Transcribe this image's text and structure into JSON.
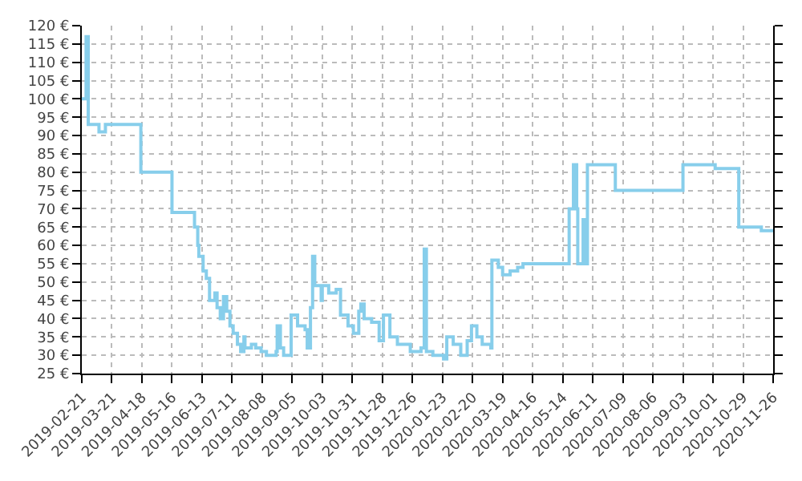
{
  "chart_data": {
    "type": "step",
    "color": "#87ceeb",
    "x": [
      "2019-02-21",
      "2019-02-25",
      "2019-02-27",
      "2019-03-09",
      "2019-03-15",
      "2019-04-17",
      "2019-05-16",
      "2019-06-06",
      "2019-06-09",
      "2019-06-10",
      "2019-06-14",
      "2019-06-17",
      "2019-06-20",
      "2019-06-25",
      "2019-06-27",
      "2019-06-30",
      "2019-07-03",
      "2019-07-06",
      "2019-07-09",
      "2019-07-12",
      "2019-07-16",
      "2019-07-19",
      "2019-07-22",
      "2019-07-23",
      "2019-07-29",
      "2019-08-02",
      "2019-08-07",
      "2019-08-12",
      "2019-08-21",
      "2019-08-22",
      "2019-08-25",
      "2019-08-28",
      "2019-09-04",
      "2019-09-10",
      "2019-09-17",
      "2019-09-19",
      "2019-09-22",
      "2019-09-24",
      "2019-09-26",
      "2019-10-02",
      "2019-10-03",
      "2019-10-09",
      "2019-10-16",
      "2019-10-20",
      "2019-10-27",
      "2019-11-01",
      "2019-11-06",
      "2019-11-08",
      "2019-11-11",
      "2019-11-18",
      "2019-11-25",
      "2019-11-29",
      "2019-12-05",
      "2019-12-12",
      "2019-12-24",
      "2020-01-03",
      "2020-01-06",
      "2020-01-08",
      "2020-01-14",
      "2020-01-24",
      "2020-01-27",
      "2020-02-02",
      "2020-02-09",
      "2020-02-15",
      "2020-02-19",
      "2020-02-24",
      "2020-02-29",
      "2020-03-08",
      "2020-03-09",
      "2020-03-15",
      "2020-03-19",
      "2020-03-26",
      "2020-04-02",
      "2020-04-07",
      "2020-05-20",
      "2020-05-24",
      "2020-05-27",
      "2020-05-28",
      "2020-06-02",
      "2020-06-03",
      "2020-06-06",
      "2020-07-02",
      "2020-09-03",
      "2020-10-03",
      "2020-10-25",
      "2020-11-15",
      "2020-11-26"
    ],
    "values": [
      100,
      117,
      93,
      91,
      93,
      80,
      69,
      65,
      60,
      57,
      53,
      51,
      45,
      47,
      43,
      40,
      46,
      42,
      38,
      36,
      33,
      31,
      35,
      32,
      33,
      32,
      31,
      30,
      31,
      38,
      32,
      30,
      41,
      38,
      37,
      32,
      43,
      57,
      49,
      45,
      49,
      47,
      48,
      41,
      38,
      36,
      42,
      44,
      40,
      39,
      34,
      41,
      35,
      33,
      31,
      32,
      59,
      31,
      30,
      29,
      35,
      33,
      30,
      34,
      38,
      35,
      33,
      32,
      56,
      54,
      52,
      53,
      54,
      55,
      70,
      82,
      70,
      55,
      67,
      55,
      82,
      75,
      82,
      81,
      65,
      64,
      64
    ],
    "xlim": [
      "2019-02-21",
      "2020-11-26"
    ],
    "xticks": [
      "2019-02-21",
      "2019-03-21",
      "2019-04-18",
      "2019-05-16",
      "2019-06-13",
      "2019-07-11",
      "2019-08-08",
      "2019-09-05",
      "2019-10-03",
      "2019-10-31",
      "2019-11-28",
      "2019-12-26",
      "2020-01-23",
      "2020-02-20",
      "2020-03-19",
      "2020-04-16",
      "2020-05-14",
      "2020-06-11",
      "2020-07-09",
      "2020-08-06",
      "2020-09-03",
      "2020-10-01",
      "2020-10-29",
      "2020-11-26"
    ],
    "ylim": [
      25,
      120
    ],
    "yticks": [
      {
        "value": 25,
        "label": "25 €"
      },
      {
        "value": 30,
        "label": "30 €"
      },
      {
        "value": 35,
        "label": "35 €"
      },
      {
        "value": 40,
        "label": "40 €"
      },
      {
        "value": 45,
        "label": "45 €"
      },
      {
        "value": 50,
        "label": "50 €"
      },
      {
        "value": 55,
        "label": "55 €"
      },
      {
        "value": 60,
        "label": "60 €"
      },
      {
        "value": 65,
        "label": "65 €"
      },
      {
        "value": 70,
        "label": "70 €"
      },
      {
        "value": 75,
        "label": "75 €"
      },
      {
        "value": 80,
        "label": "80 €"
      },
      {
        "value": 85,
        "label": "85 €"
      },
      {
        "value": 90,
        "label": "90 €"
      },
      {
        "value": 95,
        "label": "95 €"
      },
      {
        "value": 100,
        "label": "100 €"
      },
      {
        "value": 105,
        "label": "105 €"
      },
      {
        "value": 110,
        "label": "110 €"
      },
      {
        "value": 115,
        "label": "115 €"
      },
      {
        "value": 120,
        "label": "120 €"
      }
    ],
    "grid": true,
    "line_style": "solid"
  }
}
